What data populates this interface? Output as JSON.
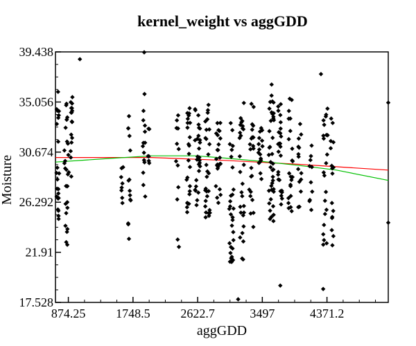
{
  "chart_data": {
    "type": "scatter",
    "title": "kernel_weight vs aggGDD",
    "xlabel": "aggGDD",
    "ylabel": "Moisture",
    "x_ticks": [
      "874.25",
      "1748.5",
      "2622.7",
      "3497",
      "4371.2"
    ],
    "y_ticks": [
      "39.438",
      "35.056",
      "30.674",
      "26.292",
      "21.91",
      "17.528"
    ],
    "xlim": [
      700,
      5200
    ],
    "ylim": [
      17.528,
      39.438
    ],
    "grid": false,
    "legend": "none",
    "point_color": "#000000",
    "fit_lines": [
      {
        "color": "#ff0000",
        "x": [
          700,
          2000,
          3000,
          4000,
          5200
        ],
        "y": [
          30.2,
          30.2,
          29.95,
          29.6,
          29.1
        ]
      },
      {
        "color": "#00c000",
        "x": [
          700,
          1500,
          2000,
          2600,
          3000,
          3500,
          4000,
          4500,
          5200
        ],
        "y": [
          29.8,
          30.15,
          30.35,
          30.35,
          30.15,
          29.85,
          29.5,
          29.1,
          28.2
        ]
      }
    ],
    "clusters": [
      {
        "x": 730,
        "xs": 20,
        "y_lo": 22.5,
        "y_hi": 36.0,
        "n": 22
      },
      {
        "x": 850,
        "xs": 30,
        "y_lo": 22.5,
        "y_hi": 35.5,
        "n": 28
      },
      {
        "x": 920,
        "xs": 15,
        "y_lo": 28.5,
        "y_hi": 35.5,
        "n": 16
      },
      {
        "x": 1600,
        "xs": 15,
        "y_lo": 25.5,
        "y_hi": 31.0,
        "n": 8
      },
      {
        "x": 1700,
        "xs": 20,
        "y_lo": 23.0,
        "y_hi": 34.0,
        "n": 14
      },
      {
        "x": 1900,
        "xs": 25,
        "y_lo": 26.5,
        "y_hi": 36.0,
        "n": 14
      },
      {
        "x": 1960,
        "xs": 10,
        "y_lo": 28.5,
        "y_hi": 33.0,
        "n": 6
      },
      {
        "x": 2350,
        "xs": 20,
        "y_lo": 22.0,
        "y_hi": 34.0,
        "n": 12
      },
      {
        "x": 2500,
        "xs": 30,
        "y_lo": 25.0,
        "y_hi": 35.0,
        "n": 24
      },
      {
        "x": 2620,
        "xs": 35,
        "y_lo": 26.0,
        "y_hi": 34.5,
        "n": 28
      },
      {
        "x": 2760,
        "xs": 35,
        "y_lo": 24.5,
        "y_hi": 35.0,
        "n": 28
      },
      {
        "x": 2900,
        "xs": 35,
        "y_lo": 26.0,
        "y_hi": 33.5,
        "n": 24
      },
      {
        "x": 3080,
        "xs": 30,
        "y_lo": 21.0,
        "y_hi": 33.5,
        "n": 30
      },
      {
        "x": 3220,
        "xs": 35,
        "y_lo": 21.0,
        "y_hi": 35.0,
        "n": 28
      },
      {
        "x": 3350,
        "xs": 30,
        "y_lo": 24.0,
        "y_hi": 35.0,
        "n": 22
      },
      {
        "x": 3470,
        "xs": 30,
        "y_lo": 28.0,
        "y_hi": 33.0,
        "n": 16
      },
      {
        "x": 3620,
        "xs": 35,
        "y_lo": 24.5,
        "y_hi": 37.0,
        "n": 40
      },
      {
        "x": 3740,
        "xs": 30,
        "y_lo": 25.5,
        "y_hi": 35.5,
        "n": 26
      },
      {
        "x": 3880,
        "xs": 30,
        "y_lo": 25.5,
        "y_hi": 36.5,
        "n": 22
      },
      {
        "x": 4000,
        "xs": 25,
        "y_lo": 25.5,
        "y_hi": 34.0,
        "n": 14
      },
      {
        "x": 4150,
        "xs": 25,
        "y_lo": 25.5,
        "y_hi": 31.5,
        "n": 10
      },
      {
        "x": 4350,
        "xs": 30,
        "y_lo": 22.0,
        "y_hi": 35.0,
        "n": 22
      },
      {
        "x": 4440,
        "xs": 20,
        "y_lo": 21.5,
        "y_hi": 34.0,
        "n": 16
      }
    ],
    "points": [
      {
        "x": 1030,
        "y": 38.8
      },
      {
        "x": 1900,
        "y": 39.4
      },
      {
        "x": 3740,
        "y": 19.0
      },
      {
        "x": 4320,
        "y": 18.7
      },
      {
        "x": 3170,
        "y": 17.8
      },
      {
        "x": 5200,
        "y": 35.0
      },
      {
        "x": 5200,
        "y": 24.5
      },
      {
        "x": 4290,
        "y": 37.5
      }
    ]
  }
}
